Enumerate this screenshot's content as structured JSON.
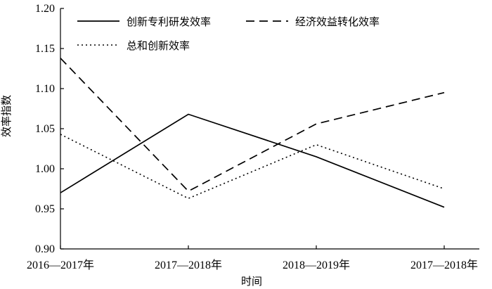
{
  "chart_data": {
    "type": "line",
    "x": [
      "2016—2017年",
      "2017—2018年",
      "2018—2019年",
      "2017—2018年"
    ],
    "xlabel": "时间",
    "ylabel": "效率指数",
    "ylim": [
      0.9,
      1.2
    ],
    "yticks": [
      "0.90",
      "0.95",
      "1.00",
      "1.05",
      "1.10",
      "1.15",
      "1.20"
    ],
    "grid": false,
    "legend": "top",
    "series": [
      {
        "name": "创新专利研发效率",
        "style": "solid",
        "values": [
          0.97,
          1.068,
          1.015,
          0.952
        ]
      },
      {
        "name": "经济效益转化效率",
        "style": "dashed",
        "values": [
          1.138,
          0.972,
          1.056,
          1.095
        ]
      },
      {
        "name": "总和创新效率",
        "style": "dotted",
        "values": [
          1.043,
          0.963,
          1.03,
          0.975
        ]
      }
    ]
  }
}
